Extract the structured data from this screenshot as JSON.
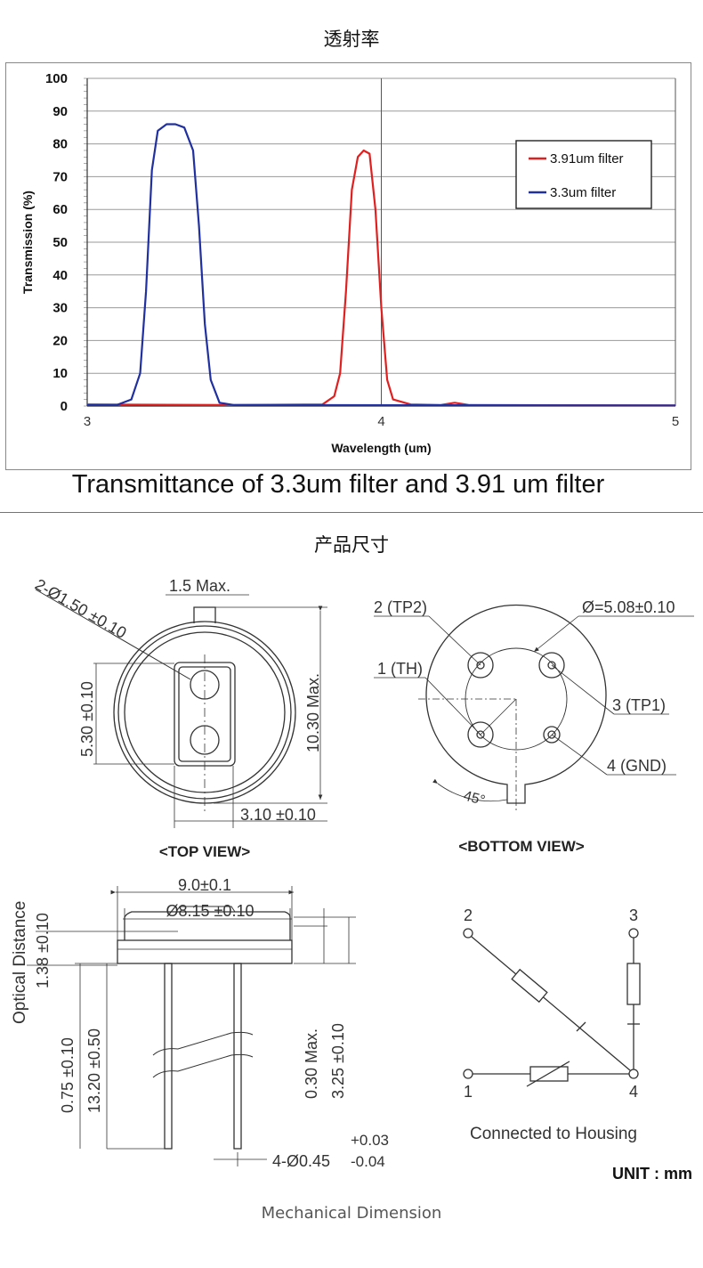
{
  "section1": {
    "title": "透射率"
  },
  "chart_data": {
    "type": "line",
    "title": "",
    "xlabel": "Wavelength (um)",
    "ylabel": "Transmission (%)",
    "xlim": [
      3,
      5
    ],
    "ylim": [
      0,
      100
    ],
    "x_ticks": [
      "3",
      "4",
      "5"
    ],
    "y_ticks": [
      "100",
      "90",
      "80",
      "70",
      "60",
      "50",
      "40",
      "30",
      "20",
      "10",
      "0"
    ],
    "grid": true,
    "legend_position": "top-right",
    "series": [
      {
        "name": "3.91um filter",
        "color": "#e02020",
        "x": [
          3.0,
          3.5,
          3.8,
          3.84,
          3.86,
          3.88,
          3.9,
          3.92,
          3.94,
          3.96,
          3.98,
          4.0,
          4.02,
          4.04,
          4.1,
          4.2,
          4.25,
          4.3,
          5.0
        ],
        "y": [
          0.5,
          0.3,
          0.5,
          3,
          10,
          35,
          66,
          76,
          78,
          77,
          60,
          30,
          8,
          2,
          0.5,
          0.3,
          1,
          0.3,
          0.2
        ]
      },
      {
        "name": "3.3um filter",
        "color": "#2030a0",
        "x": [
          3.0,
          3.1,
          3.15,
          3.18,
          3.2,
          3.22,
          3.24,
          3.27,
          3.3,
          3.33,
          3.36,
          3.38,
          3.4,
          3.42,
          3.45,
          3.5,
          5.0
        ],
        "y": [
          0.3,
          0.3,
          2,
          10,
          35,
          72,
          84,
          86,
          86,
          85,
          78,
          55,
          25,
          8,
          1,
          0.3,
          0.2
        ]
      }
    ]
  },
  "section1_caption": "Transmittance of 3.3um filter and 3.91 um filter",
  "section2": {
    "title": "产品尺寸"
  },
  "drawing": {
    "top_view": {
      "label": "<TOP VIEW>",
      "dim_hole": "2-Ø1.50 ±0.10",
      "dim_tab": "1.5 Max.",
      "dim_height": "10.30 Max.",
      "dim_window": "5.30 ±0.10",
      "dim_width": "3.10 ±0.10"
    },
    "bottom_view": {
      "label": "<BOTTOM VIEW>",
      "pin2": "2 (TP2)",
      "pin1": "1 (TH)",
      "pin3": "3 (TP1)",
      "pin4": "4 (GND)",
      "diameter": "Ø=5.08±0.10",
      "angle": "45°"
    },
    "side_view": {
      "dim_outer": "9.0±0.1",
      "dim_inner": "Ø8.15 ±0.10",
      "optical_distance": "Optical Distance",
      "dim_optical": "1.38 ±0.10",
      "dim_flange": "0.75 ±0.10",
      "dim_lead": "13.20 ±0.50",
      "dim_max": "0.30 Max.",
      "dim_body": "3.25 ±0.10",
      "lead_dia_prefix": "4-Ø0.45",
      "lead_tol_plus": "+0.03",
      "lead_tol_minus": "-0.04"
    },
    "circuit": {
      "pin2": "2",
      "pin3": "3",
      "pin1": "1",
      "pin4": "4",
      "note": "Connected to Housing"
    },
    "unit": "UNIT : mm"
  },
  "footer_caption": "Mechanical Dimension"
}
